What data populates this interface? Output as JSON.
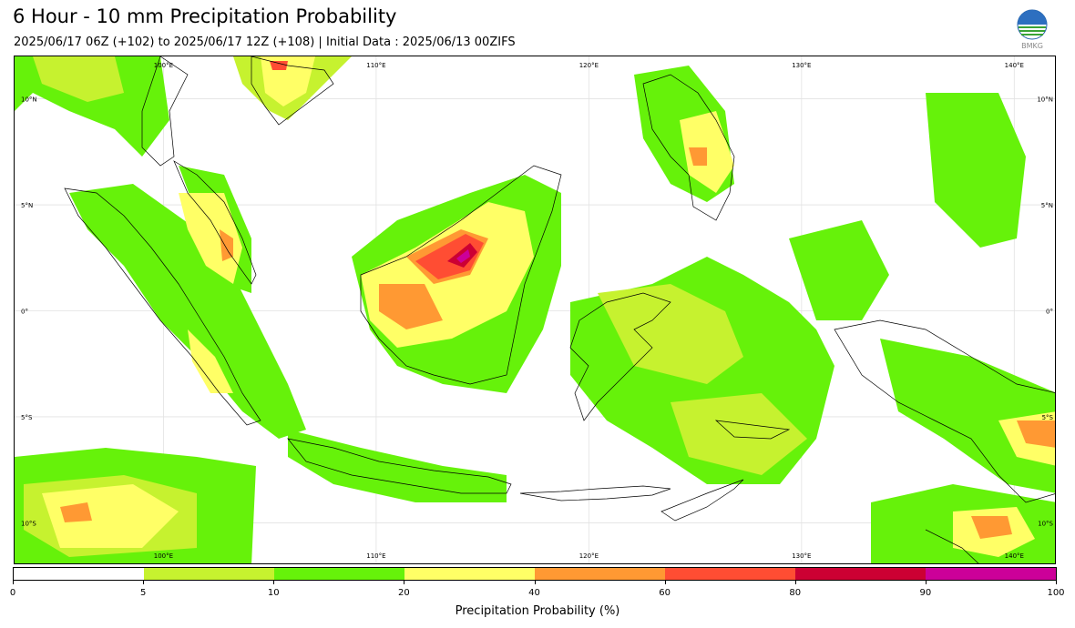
{
  "header": {
    "title": "6 Hour - 10 mm Precipitation Probability",
    "subtitle": "2025/06/17 06Z (+102) to 2025/06/17 12Z (+108) | Initial Data : 2025/06/13 00ZIFS"
  },
  "logo": {
    "icon": "bmkg-logo-icon",
    "text": "BMKG"
  },
  "map": {
    "region": "Indonesia / Maritime Continent",
    "lon_labels": [
      "100°E",
      "110°E",
      "120°E",
      "130°E",
      "140°E"
    ],
    "lat_labels": [
      "10°N",
      "5°N",
      "0°",
      "5°S",
      "10°S"
    ],
    "lon_range": [
      93,
      142
    ],
    "lat_range": [
      -12,
      12
    ]
  },
  "colorbar": {
    "title": "Precipitation Probability (%)",
    "bounds": [
      "0",
      "5",
      "10",
      "20",
      "40",
      "60",
      "80",
      "90",
      "100"
    ],
    "colors": [
      "#ffffff",
      "#c6f22f",
      "#66f20a",
      "#ffff66",
      "#ff9933",
      "#ff4d33",
      "#cc0033",
      "#cc0099"
    ]
  }
}
